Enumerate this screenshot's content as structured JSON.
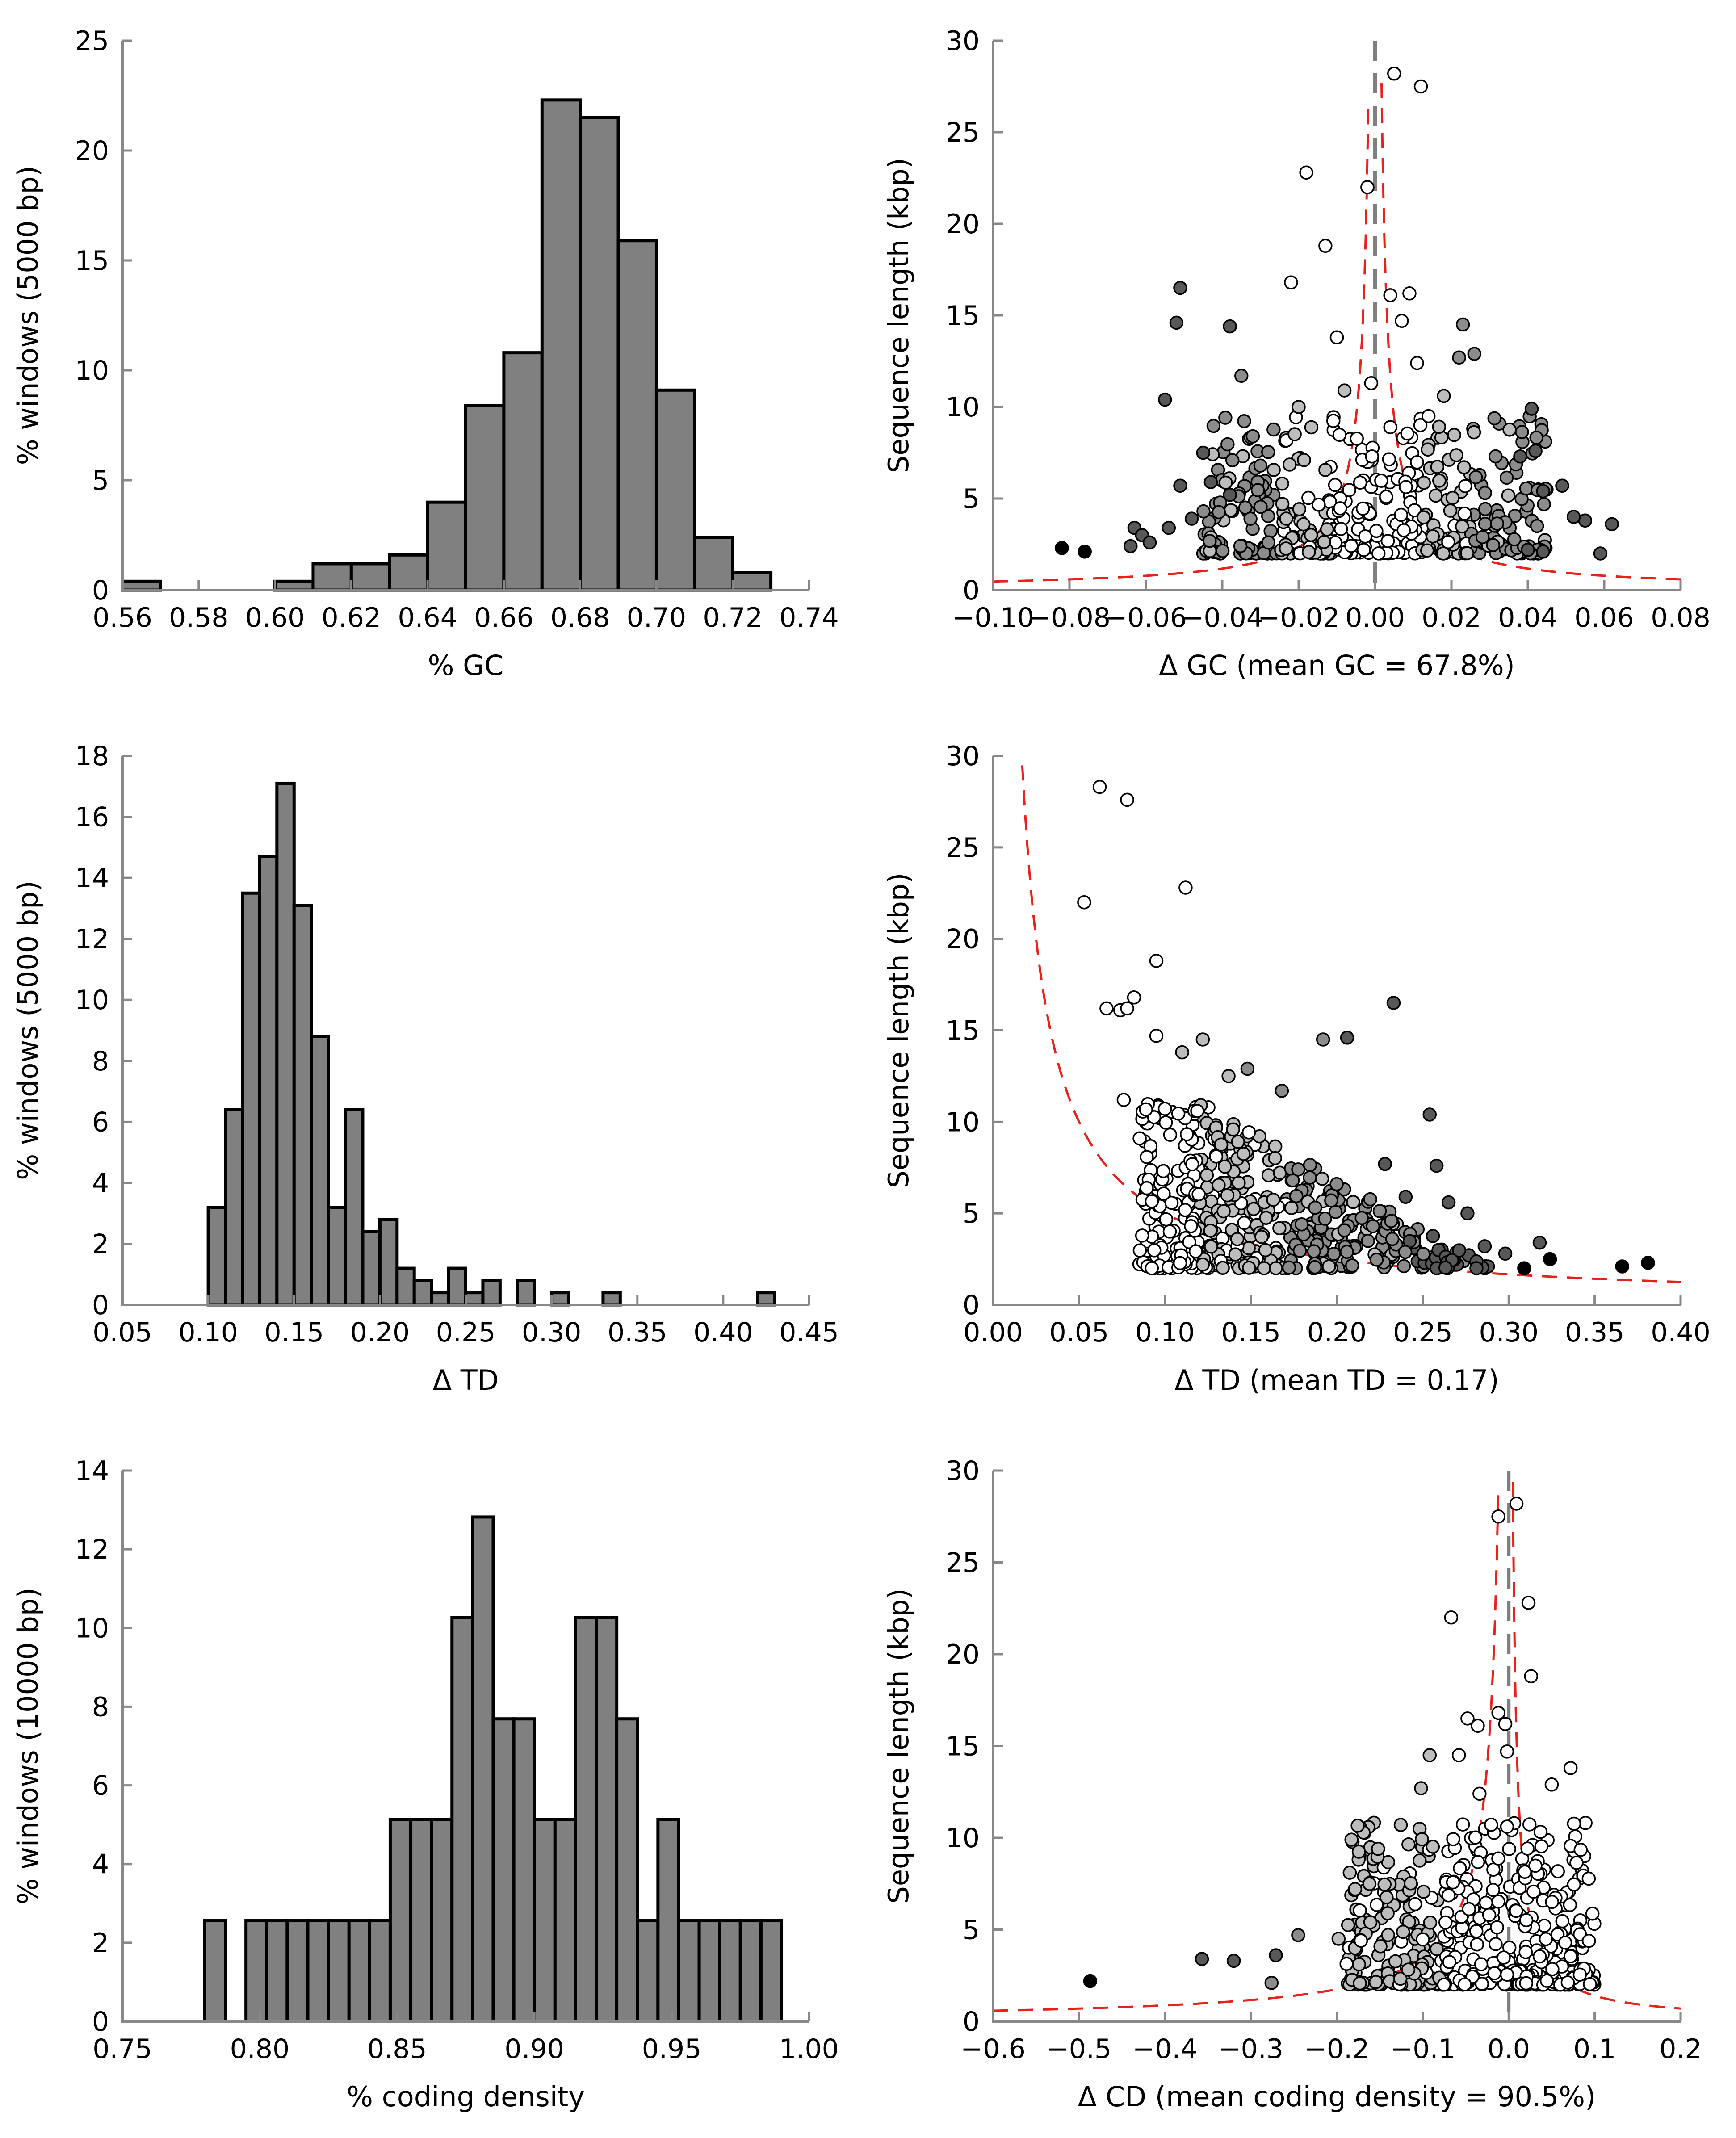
{
  "chart_data": [
    {
      "id": "gc_hist",
      "type": "bar",
      "xlabel": "% GC",
      "ylabel": "% windows (5000 bp)",
      "xlim": [
        0.56,
        0.74
      ],
      "ylim": [
        0,
        25
      ],
      "xticks": [
        "0.56",
        "0.58",
        "0.60",
        "0.62",
        "0.64",
        "0.66",
        "0.68",
        "0.70",
        "0.72",
        "0.74"
      ],
      "yticks": [
        "0",
        "5",
        "10",
        "15",
        "20",
        "25"
      ],
      "bin_width": 0.01,
      "bins": [
        {
          "x": 0.56,
          "value": 0.4
        },
        {
          "x": 0.6,
          "value": 0.4
        },
        {
          "x": 0.61,
          "value": 1.2
        },
        {
          "x": 0.62,
          "value": 1.2
        },
        {
          "x": 0.63,
          "value": 1.6
        },
        {
          "x": 0.64,
          "value": 4.0
        },
        {
          "x": 0.65,
          "value": 8.4
        },
        {
          "x": 0.66,
          "value": 10.8
        },
        {
          "x": 0.67,
          "value": 22.3
        },
        {
          "x": 0.68,
          "value": 21.5
        },
        {
          "x": 0.69,
          "value": 15.9
        },
        {
          "x": 0.7,
          "value": 9.1
        },
        {
          "x": 0.71,
          "value": 2.4
        },
        {
          "x": 0.72,
          "value": 0.8
        }
      ]
    },
    {
      "id": "gc_scatter",
      "type": "scatter",
      "xlabel": "Δ GC (mean GC = 67.8%)",
      "ylabel": "Sequence length (kbp)",
      "xlim": [
        -0.1,
        0.08
      ],
      "ylim": [
        0,
        30
      ],
      "xticks": [
        "−0.10",
        "−0.08",
        "−0.06",
        "−0.04",
        "−0.02",
        "0.00",
        "0.02",
        "0.04",
        "0.06",
        "0.08"
      ],
      "yticks": [
        "0",
        "5",
        "10",
        "15",
        "20",
        "25",
        "30"
      ],
      "reference_line_x": 0,
      "threshold_curve": {
        "color": "#e8211b",
        "k": 0.047,
        "y_top": 30
      },
      "point_colors": [
        "#ffffff",
        "#bdbdbd",
        "#8c8c8c",
        "#585858",
        "#000000"
      ],
      "points": [
        {
          "x": 0.005,
          "y": 28.2,
          "c": 0
        },
        {
          "x": 0.012,
          "y": 27.5,
          "c": 0
        },
        {
          "x": -0.018,
          "y": 22.8,
          "c": 0
        },
        {
          "x": -0.002,
          "y": 22.0,
          "c": 0
        },
        {
          "x": -0.013,
          "y": 18.8,
          "c": 0
        },
        {
          "x": -0.022,
          "y": 16.8,
          "c": 0
        },
        {
          "x": 0.004,
          "y": 16.1,
          "c": 0
        },
        {
          "x": 0.009,
          "y": 16.2,
          "c": 0
        },
        {
          "x": -0.051,
          "y": 16.5,
          "c": 3
        },
        {
          "x": -0.052,
          "y": 14.6,
          "c": 3
        },
        {
          "x": -0.038,
          "y": 14.4,
          "c": 3
        },
        {
          "x": 0.023,
          "y": 14.5,
          "c": 2
        },
        {
          "x": 0.007,
          "y": 14.7,
          "c": 0
        },
        {
          "x": -0.01,
          "y": 13.8,
          "c": 0
        },
        {
          "x": 0.026,
          "y": 12.9,
          "c": 2
        },
        {
          "x": 0.022,
          "y": 12.7,
          "c": 2
        },
        {
          "x": 0.011,
          "y": 12.4,
          "c": 0
        },
        {
          "x": -0.035,
          "y": 11.7,
          "c": 2
        },
        {
          "x": -0.001,
          "y": 11.3,
          "c": 0
        },
        {
          "x": -0.008,
          "y": 10.9,
          "c": 1
        },
        {
          "x": 0.018,
          "y": 10.6,
          "c": 1
        },
        {
          "x": -0.055,
          "y": 10.4,
          "c": 3
        },
        {
          "x": 0.041,
          "y": 9.9,
          "c": 3
        },
        {
          "x": -0.02,
          "y": 10.0,
          "c": 1
        },
        {
          "x": 0.014,
          "y": 9.5,
          "c": 0
        },
        {
          "x": 0.004,
          "y": 8.9,
          "c": 0
        },
        {
          "x": -0.032,
          "y": 8.4,
          "c": 2
        },
        {
          "x": -0.045,
          "y": 7.5,
          "c": 3
        },
        {
          "x": 0.038,
          "y": 7.3,
          "c": 3
        },
        {
          "x": 0.042,
          "y": 7.6,
          "c": 3
        },
        {
          "x": -0.03,
          "y": 6.8,
          "c": 2
        },
        {
          "x": -0.051,
          "y": 5.7,
          "c": 3
        },
        {
          "x": -0.043,
          "y": 5.9,
          "c": 3
        },
        {
          "x": -0.038,
          "y": 5.2,
          "c": 3
        },
        {
          "x": 0.044,
          "y": 5.4,
          "c": 3
        },
        {
          "x": 0.049,
          "y": 5.7,
          "c": 3
        },
        {
          "x": -0.054,
          "y": 3.4,
          "c": 3
        },
        {
          "x": -0.048,
          "y": 3.9,
          "c": 3
        },
        {
          "x": 0.055,
          "y": 3.8,
          "c": 3
        },
        {
          "x": 0.062,
          "y": 3.6,
          "c": 3
        },
        {
          "x": 0.052,
          "y": 4.0,
          "c": 3
        },
        {
          "x": -0.063,
          "y": 3.4,
          "c": 3
        },
        {
          "x": -0.061,
          "y": 3.0,
          "c": 3
        },
        {
          "x": -0.059,
          "y": 2.6,
          "c": 3
        },
        {
          "x": -0.064,
          "y": 2.4,
          "c": 3
        },
        {
          "x": -0.082,
          "y": 2.3,
          "c": 4
        },
        {
          "x": -0.076,
          "y": 2.1,
          "c": 4
        },
        {
          "x": 0.059,
          "y": 2.0,
          "c": 3
        },
        {
          "x": 0.044,
          "y": 2.1,
          "c": 3
        },
        {
          "x": 0.04,
          "y": 2.2,
          "c": 3
        }
      ],
      "cluster": {
        "x_range": [
          -0.045,
          0.045
        ],
        "y_range": [
          2.0,
          9.5
        ],
        "count": 420,
        "seed": 7
      }
    },
    {
      "id": "td_hist",
      "type": "bar",
      "xlabel": "Δ TD",
      "ylabel": "% windows (5000 bp)",
      "xlim": [
        0.05,
        0.45
      ],
      "ylim": [
        0,
        18
      ],
      "xticks": [
        "0.05",
        "0.10",
        "0.15",
        "0.20",
        "0.25",
        "0.30",
        "0.35",
        "0.40",
        "0.45"
      ],
      "yticks": [
        "0",
        "2",
        "4",
        "6",
        "8",
        "10",
        "12",
        "14",
        "16",
        "18"
      ],
      "bin_width": 0.01,
      "bins": [
        {
          "x": 0.1,
          "value": 3.2
        },
        {
          "x": 0.11,
          "value": 6.4
        },
        {
          "x": 0.12,
          "value": 13.5
        },
        {
          "x": 0.13,
          "value": 14.7
        },
        {
          "x": 0.14,
          "value": 17.1
        },
        {
          "x": 0.15,
          "value": 13.1
        },
        {
          "x": 0.16,
          "value": 8.8
        },
        {
          "x": 0.17,
          "value": 3.2
        },
        {
          "x": 0.18,
          "value": 6.4
        },
        {
          "x": 0.19,
          "value": 2.4
        },
        {
          "x": 0.2,
          "value": 2.8
        },
        {
          "x": 0.21,
          "value": 1.2
        },
        {
          "x": 0.22,
          "value": 0.8
        },
        {
          "x": 0.23,
          "value": 0.4
        },
        {
          "x": 0.24,
          "value": 1.2
        },
        {
          "x": 0.25,
          "value": 0.4
        },
        {
          "x": 0.26,
          "value": 0.8
        },
        {
          "x": 0.28,
          "value": 0.8
        },
        {
          "x": 0.3,
          "value": 0.4
        },
        {
          "x": 0.33,
          "value": 0.4
        },
        {
          "x": 0.42,
          "value": 0.4
        }
      ]
    },
    {
      "id": "td_scatter",
      "type": "scatter",
      "xlabel": "Δ TD (mean TD = 0.17)",
      "ylabel": "Sequence length (kbp)",
      "xlim": [
        0.0,
        0.4
      ],
      "ylim": [
        0,
        30
      ],
      "xticks": [
        "0.00",
        "0.05",
        "0.10",
        "0.15",
        "0.20",
        "0.25",
        "0.30",
        "0.35",
        "0.40"
      ],
      "yticks": [
        "0",
        "5",
        "10",
        "15",
        "20",
        "25",
        "30"
      ],
      "threshold_curve": {
        "color": "#e8211b",
        "k": 0.5,
        "y_top": 30
      },
      "point_colors": [
        "#ffffff",
        "#bdbdbd",
        "#8c8c8c",
        "#585858",
        "#000000"
      ],
      "points": [
        {
          "x": 0.062,
          "y": 28.3,
          "c": 0
        },
        {
          "x": 0.078,
          "y": 27.6,
          "c": 0
        },
        {
          "x": 0.053,
          "y": 22.0,
          "c": 0
        },
        {
          "x": 0.112,
          "y": 22.8,
          "c": 0
        },
        {
          "x": 0.095,
          "y": 18.8,
          "c": 0
        },
        {
          "x": 0.082,
          "y": 16.8,
          "c": 0
        },
        {
          "x": 0.074,
          "y": 16.1,
          "c": 0
        },
        {
          "x": 0.078,
          "y": 16.2,
          "c": 0
        },
        {
          "x": 0.066,
          "y": 16.2,
          "c": 0
        },
        {
          "x": 0.233,
          "y": 16.5,
          "c": 3
        },
        {
          "x": 0.192,
          "y": 14.5,
          "c": 2
        },
        {
          "x": 0.206,
          "y": 14.6,
          "c": 3
        },
        {
          "x": 0.095,
          "y": 14.7,
          "c": 0
        },
        {
          "x": 0.122,
          "y": 14.5,
          "c": 1
        },
        {
          "x": 0.11,
          "y": 13.8,
          "c": 1
        },
        {
          "x": 0.148,
          "y": 12.9,
          "c": 2
        },
        {
          "x": 0.137,
          "y": 12.5,
          "c": 1
        },
        {
          "x": 0.076,
          "y": 11.2,
          "c": 0
        },
        {
          "x": 0.254,
          "y": 10.4,
          "c": 3
        },
        {
          "x": 0.168,
          "y": 11.7,
          "c": 2
        },
        {
          "x": 0.258,
          "y": 7.6,
          "c": 3
        },
        {
          "x": 0.228,
          "y": 7.7,
          "c": 3
        },
        {
          "x": 0.265,
          "y": 5.6,
          "c": 3
        },
        {
          "x": 0.24,
          "y": 5.9,
          "c": 3
        },
        {
          "x": 0.276,
          "y": 5.0,
          "c": 3
        },
        {
          "x": 0.318,
          "y": 3.4,
          "c": 3
        },
        {
          "x": 0.324,
          "y": 2.5,
          "c": 4
        },
        {
          "x": 0.366,
          "y": 2.1,
          "c": 4
        },
        {
          "x": 0.381,
          "y": 2.3,
          "c": 4
        },
        {
          "x": 0.309,
          "y": 2.0,
          "c": 4
        },
        {
          "x": 0.286,
          "y": 3.2,
          "c": 3
        },
        {
          "x": 0.298,
          "y": 2.8,
          "c": 3
        },
        {
          "x": 0.122,
          "y": 2.2,
          "c": 1
        }
      ],
      "cluster": {
        "x_range": [
          0.085,
          0.29
        ],
        "y_range": [
          2.0,
          11.0
        ],
        "count": 480,
        "seed": 11
      }
    },
    {
      "id": "cd_hist",
      "type": "bar",
      "xlabel": "% coding density",
      "ylabel": "% windows (10000 bp)",
      "xlim": [
        0.75,
        1.0
      ],
      "ylim": [
        0,
        14
      ],
      "xticks": [
        "0.75",
        "0.80",
        "0.85",
        "0.90",
        "0.95",
        "1.00"
      ],
      "yticks": [
        "0",
        "2",
        "4",
        "6",
        "8",
        "10",
        "12",
        "14"
      ],
      "bin_width": 0.0075,
      "bins": [
        {
          "x": 0.78,
          "value": 2.56
        },
        {
          "x": 0.795,
          "value": 2.56
        },
        {
          "x": 0.8025,
          "value": 2.56
        },
        {
          "x": 0.81,
          "value": 2.56
        },
        {
          "x": 0.8175,
          "value": 2.56
        },
        {
          "x": 0.825,
          "value": 2.56
        },
        {
          "x": 0.8325,
          "value": 2.56
        },
        {
          "x": 0.84,
          "value": 2.56
        },
        {
          "x": 0.8475,
          "value": 5.13
        },
        {
          "x": 0.855,
          "value": 5.13
        },
        {
          "x": 0.8625,
          "value": 5.13
        },
        {
          "x": 0.87,
          "value": 10.26
        },
        {
          "x": 0.8775,
          "value": 12.82
        },
        {
          "x": 0.885,
          "value": 7.69
        },
        {
          "x": 0.8925,
          "value": 7.69
        },
        {
          "x": 0.9,
          "value": 5.13
        },
        {
          "x": 0.9075,
          "value": 5.13
        },
        {
          "x": 0.915,
          "value": 10.26
        },
        {
          "x": 0.9225,
          "value": 10.26
        },
        {
          "x": 0.93,
          "value": 7.69
        },
        {
          "x": 0.9375,
          "value": 2.56
        },
        {
          "x": 0.945,
          "value": 5.13
        },
        {
          "x": 0.9525,
          "value": 2.56
        },
        {
          "x": 0.96,
          "value": 2.56
        },
        {
          "x": 0.9675,
          "value": 2.56
        },
        {
          "x": 0.975,
          "value": 2.56
        },
        {
          "x": 0.9825,
          "value": 2.56
        }
      ]
    },
    {
      "id": "cd_scatter",
      "type": "scatter",
      "xlabel": "Δ CD (mean coding density = 90.5%)",
      "ylabel": "Sequence length (kbp)",
      "xlim": [
        -0.6,
        0.2
      ],
      "ylim": [
        0,
        30
      ],
      "xticks": [
        "−0.6",
        "−0.5",
        "−0.4",
        "−0.3",
        "−0.2",
        "−0.1",
        "0.0",
        "0.1",
        "0.2"
      ],
      "yticks": [
        "0",
        "5",
        "10",
        "15",
        "20",
        "25",
        "30"
      ],
      "reference_line_x": 0,
      "threshold_curve": {
        "color": "#e8211b",
        "k": 0.35,
        "y_top": 30,
        "left_k": 0.35,
        "right_k": 0.14
      },
      "point_colors": [
        "#ffffff",
        "#bdbdbd",
        "#8c8c8c",
        "#585858",
        "#000000"
      ],
      "points": [
        {
          "x": 0.009,
          "y": 28.2,
          "c": 0
        },
        {
          "x": -0.012,
          "y": 27.5,
          "c": 0
        },
        {
          "x": 0.023,
          "y": 22.8,
          "c": 0
        },
        {
          "x": -0.067,
          "y": 22.0,
          "c": 0
        },
        {
          "x": 0.026,
          "y": 18.8,
          "c": 0
        },
        {
          "x": -0.012,
          "y": 16.8,
          "c": 0
        },
        {
          "x": -0.048,
          "y": 16.5,
          "c": 0
        },
        {
          "x": -0.036,
          "y": 16.1,
          "c": 0
        },
        {
          "x": -0.004,
          "y": 16.2,
          "c": 0
        },
        {
          "x": -0.092,
          "y": 14.5,
          "c": 1
        },
        {
          "x": -0.058,
          "y": 14.5,
          "c": 0
        },
        {
          "x": -0.002,
          "y": 14.7,
          "c": 0
        },
        {
          "x": 0.072,
          "y": 13.8,
          "c": 0
        },
        {
          "x": 0.05,
          "y": 12.9,
          "c": 0
        },
        {
          "x": -0.034,
          "y": 12.4,
          "c": 0
        },
        {
          "x": -0.102,
          "y": 12.7,
          "c": 1
        },
        {
          "x": -0.183,
          "y": 9.9,
          "c": 1
        },
        {
          "x": -0.185,
          "y": 8.1,
          "c": 1
        },
        {
          "x": -0.152,
          "y": 9.4,
          "c": 1
        },
        {
          "x": -0.245,
          "y": 4.7,
          "c": 2
        },
        {
          "x": -0.271,
          "y": 3.6,
          "c": 3
        },
        {
          "x": -0.32,
          "y": 3.3,
          "c": 3
        },
        {
          "x": -0.357,
          "y": 3.4,
          "c": 3
        },
        {
          "x": -0.276,
          "y": 2.1,
          "c": 2
        },
        {
          "x": -0.487,
          "y": 2.2,
          "c": 4
        },
        {
          "x": -0.198,
          "y": 4.5,
          "c": 1
        },
        {
          "x": -0.161,
          "y": 5.4,
          "c": 1
        }
      ],
      "cluster": {
        "x_range": [
          -0.19,
          0.1
        ],
        "y_range": [
          2.0,
          11.0
        ],
        "count": 500,
        "seed": 23
      }
    }
  ]
}
